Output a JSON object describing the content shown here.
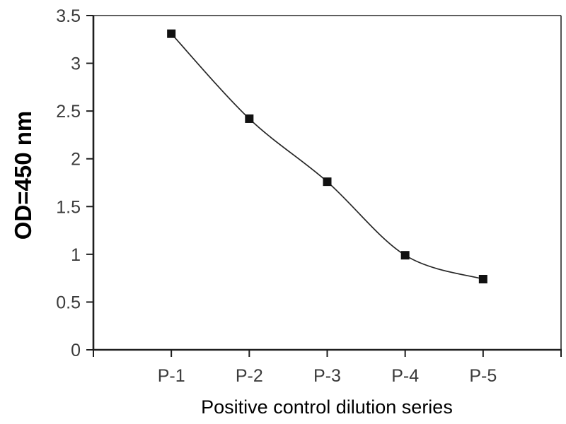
{
  "figure": {
    "background": "#ffffff",
    "axis_color": "#1e1e1e",
    "frame_color": "#2a2a2a",
    "text_color": "#3b3b3b",
    "line_color": "#262626",
    "marker_color": "#111111",
    "marker_shape": "square"
  },
  "chart_data": {
    "type": "line",
    "title": "",
    "categories": [
      "P-1",
      "P-2",
      "P-3",
      "P-4",
      "P-5"
    ],
    "series": [
      {
        "name": "Positive control",
        "values": [
          3.31,
          2.42,
          1.76,
          0.99,
          0.74
        ]
      }
    ],
    "xlabel": "Positive control dilution series",
    "ylabel": "OD=450 nm",
    "ylim": [
      0,
      3.5
    ],
    "ytick_step": 0.5,
    "ytick_labels": [
      "0",
      "0.5",
      "1",
      "1.5",
      "2",
      "2.5",
      "3",
      "3.5"
    ],
    "grid": false,
    "legend_position": "none",
    "smooth_line": true,
    "plot_frame": "top-right"
  }
}
